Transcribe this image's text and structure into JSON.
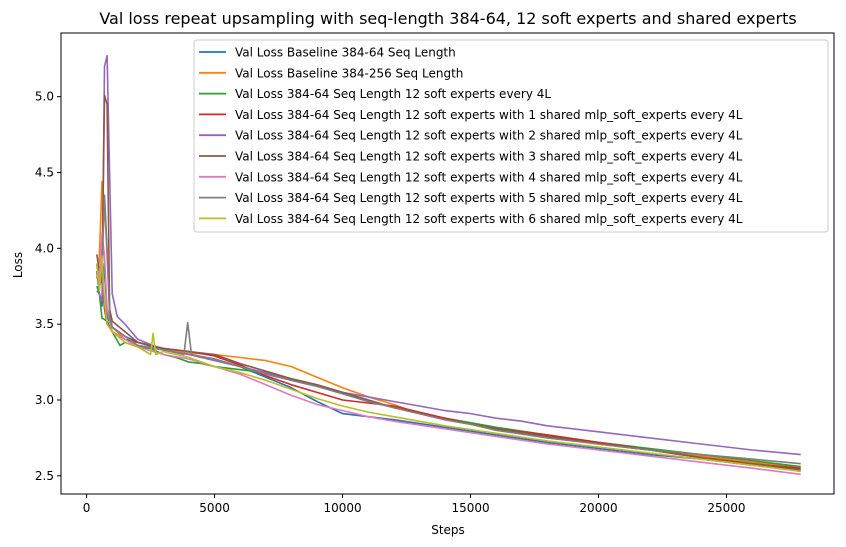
{
  "chart_data": {
    "type": "line",
    "title": "Val loss repeat upsampling with seq-length 384-64, 12 soft experts and shared experts",
    "xlabel": "Steps",
    "ylabel": "Loss",
    "xlim": [
      -1000,
      29200
    ],
    "ylim": [
      2.38,
      5.42
    ],
    "xticks": [
      0,
      5000,
      10000,
      15000,
      20000,
      25000
    ],
    "yticks": [
      2.5,
      3.0,
      3.5,
      4.0,
      4.5,
      5.0
    ],
    "xtick_labels": [
      "0",
      "5000",
      "10000",
      "15000",
      "20000",
      "25000"
    ],
    "ytick_labels": [
      "2.5",
      "3.0",
      "3.5",
      "4.0",
      "4.5",
      "5.0"
    ],
    "grid": false,
    "legend_position": "top-right",
    "series": [
      {
        "name": "Val Loss Baseline 384-64 Seq Length",
        "color": "#1f77b4",
        "points": [
          [
            400,
            3.85
          ],
          [
            500,
            3.7
          ],
          [
            600,
            3.62
          ],
          [
            700,
            3.9
          ],
          [
            800,
            3.55
          ],
          [
            1000,
            3.48
          ],
          [
            1500,
            3.42
          ],
          [
            2000,
            3.38
          ],
          [
            3000,
            3.33
          ],
          [
            4000,
            3.3
          ],
          [
            5000,
            3.27
          ],
          [
            6000,
            3.22
          ],
          [
            7000,
            3.15
          ],
          [
            8000,
            3.08
          ],
          [
            9000,
            2.99
          ],
          [
            10000,
            2.91
          ],
          [
            11000,
            2.89
          ],
          [
            12000,
            2.87
          ],
          [
            14000,
            2.82
          ],
          [
            16000,
            2.77
          ],
          [
            18000,
            2.72
          ],
          [
            20000,
            2.68
          ],
          [
            22000,
            2.64
          ],
          [
            24000,
            2.61
          ],
          [
            26000,
            2.57
          ],
          [
            27500,
            2.54
          ],
          [
            27900,
            2.53
          ]
        ]
      },
      {
        "name": "Val Loss Baseline 384-256 Seq Length",
        "color": "#ff7f0e",
        "points": [
          [
            400,
            3.8
          ],
          [
            500,
            3.95
          ],
          [
            600,
            4.44
          ],
          [
            700,
            4.3
          ],
          [
            800,
            3.95
          ],
          [
            900,
            3.6
          ],
          [
            1000,
            3.48
          ],
          [
            1500,
            3.4
          ],
          [
            2000,
            3.36
          ],
          [
            3000,
            3.33
          ],
          [
            4000,
            3.31
          ],
          [
            5000,
            3.3
          ],
          [
            6000,
            3.28
          ],
          [
            7000,
            3.26
          ],
          [
            8000,
            3.22
          ],
          [
            9000,
            3.15
          ],
          [
            10000,
            3.08
          ],
          [
            11000,
            3.02
          ],
          [
            12000,
            2.97
          ],
          [
            13000,
            2.91
          ],
          [
            14000,
            2.87
          ],
          [
            15000,
            2.84
          ],
          [
            16000,
            2.81
          ],
          [
            18000,
            2.76
          ],
          [
            20000,
            2.71
          ],
          [
            22000,
            2.67
          ],
          [
            24000,
            2.63
          ],
          [
            26000,
            2.59
          ],
          [
            27900,
            2.56
          ]
        ]
      },
      {
        "name": "Val Loss 384-64 Seq Length 12 soft experts every 4L",
        "color": "#2ca02c",
        "points": [
          [
            400,
            3.75
          ],
          [
            500,
            3.7
          ],
          [
            600,
            3.54
          ],
          [
            800,
            3.52
          ],
          [
            1000,
            3.45
          ],
          [
            1300,
            3.36
          ],
          [
            1500,
            3.38
          ],
          [
            2000,
            3.35
          ],
          [
            2500,
            3.34
          ],
          [
            3000,
            3.3
          ],
          [
            3500,
            3.28
          ],
          [
            4000,
            3.25
          ],
          [
            4500,
            3.24
          ],
          [
            5000,
            3.22
          ],
          [
            6000,
            3.2
          ],
          [
            7000,
            3.18
          ],
          [
            8000,
            3.14
          ],
          [
            9000,
            3.1
          ],
          [
            10000,
            3.05
          ],
          [
            11000,
            3.0
          ],
          [
            12000,
            2.95
          ],
          [
            13000,
            2.91
          ],
          [
            14000,
            2.88
          ],
          [
            15000,
            2.85
          ],
          [
            16000,
            2.82
          ],
          [
            18000,
            2.77
          ],
          [
            20000,
            2.72
          ],
          [
            22000,
            2.68
          ],
          [
            24000,
            2.64
          ],
          [
            26000,
            2.6
          ],
          [
            27900,
            2.56
          ]
        ]
      },
      {
        "name": "Val Loss 384-64 Seq Length 12 soft experts with 1 shared mlp_soft_experts every 4L",
        "color": "#d62728",
        "points": [
          [
            400,
            3.9
          ],
          [
            500,
            3.75
          ],
          [
            600,
            3.8
          ],
          [
            700,
            3.6
          ],
          [
            800,
            3.5
          ],
          [
            1000,
            3.45
          ],
          [
            1500,
            3.4
          ],
          [
            2000,
            3.38
          ],
          [
            3000,
            3.34
          ],
          [
            4000,
            3.32
          ],
          [
            5000,
            3.29
          ],
          [
            6000,
            3.23
          ],
          [
            7000,
            3.16
          ],
          [
            8000,
            3.1
          ],
          [
            9000,
            3.05
          ],
          [
            10000,
            3.0
          ],
          [
            11000,
            2.98
          ],
          [
            12000,
            2.96
          ],
          [
            13000,
            2.92
          ],
          [
            14000,
            2.88
          ],
          [
            15000,
            2.84
          ],
          [
            16000,
            2.81
          ],
          [
            18000,
            2.77
          ],
          [
            20000,
            2.72
          ],
          [
            22000,
            2.67
          ],
          [
            24000,
            2.62
          ],
          [
            26000,
            2.58
          ],
          [
            27900,
            2.55
          ]
        ]
      },
      {
        "name": "Val Loss 384-64 Seq Length 12 soft experts with 2 shared mlp_soft_experts every 4L",
        "color": "#9467bd",
        "points": [
          [
            400,
            3.72
          ],
          [
            500,
            3.7
          ],
          [
            600,
            3.65
          ],
          [
            700,
            5.2
          ],
          [
            800,
            5.27
          ],
          [
            900,
            4.5
          ],
          [
            1000,
            3.7
          ],
          [
            1200,
            3.55
          ],
          [
            1500,
            3.5
          ],
          [
            2000,
            3.4
          ],
          [
            3000,
            3.33
          ],
          [
            4000,
            3.3
          ],
          [
            5000,
            3.26
          ],
          [
            6000,
            3.22
          ],
          [
            7000,
            3.18
          ],
          [
            8000,
            3.13
          ],
          [
            9000,
            3.09
          ],
          [
            10000,
            3.05
          ],
          [
            11000,
            3.02
          ],
          [
            12000,
            2.99
          ],
          [
            13000,
            2.96
          ],
          [
            14000,
            2.93
          ],
          [
            15000,
            2.91
          ],
          [
            16000,
            2.88
          ],
          [
            17000,
            2.86
          ],
          [
            18000,
            2.83
          ],
          [
            20000,
            2.79
          ],
          [
            22000,
            2.75
          ],
          [
            24000,
            2.71
          ],
          [
            26000,
            2.67
          ],
          [
            27900,
            2.64
          ]
        ]
      },
      {
        "name": "Val Loss 384-64 Seq Length 12 soft experts with 3 shared mlp_soft_experts every 4L",
        "color": "#8c564b",
        "points": [
          [
            400,
            3.96
          ],
          [
            500,
            3.85
          ],
          [
            600,
            3.8
          ],
          [
            700,
            5.01
          ],
          [
            800,
            4.95
          ],
          [
            900,
            3.6
          ],
          [
            1000,
            3.52
          ],
          [
            1500,
            3.45
          ],
          [
            2000,
            3.38
          ],
          [
            3000,
            3.34
          ],
          [
            4000,
            3.32
          ],
          [
            5000,
            3.3
          ],
          [
            6000,
            3.24
          ],
          [
            7000,
            3.19
          ],
          [
            8000,
            3.14
          ],
          [
            9000,
            3.1
          ],
          [
            10000,
            3.05
          ],
          [
            11000,
            3.0
          ],
          [
            12000,
            2.95
          ],
          [
            13000,
            2.91
          ],
          [
            14000,
            2.87
          ],
          [
            15000,
            2.84
          ],
          [
            16000,
            2.81
          ],
          [
            18000,
            2.76
          ],
          [
            20000,
            2.71
          ],
          [
            22000,
            2.67
          ],
          [
            24000,
            2.62
          ],
          [
            26000,
            2.58
          ],
          [
            27900,
            2.54
          ]
        ]
      },
      {
        "name": "Val Loss 384-64 Seq Length 12 soft experts with 4 shared mlp_soft_experts every 4L",
        "color": "#e377c2",
        "points": [
          [
            400,
            3.88
          ],
          [
            500,
            3.8
          ],
          [
            600,
            4.1
          ],
          [
            700,
            3.95
          ],
          [
            800,
            3.6
          ],
          [
            1000,
            3.45
          ],
          [
            1500,
            3.4
          ],
          [
            2000,
            3.35
          ],
          [
            3000,
            3.3
          ],
          [
            4000,
            3.27
          ],
          [
            5000,
            3.22
          ],
          [
            6000,
            3.17
          ],
          [
            7000,
            3.1
          ],
          [
            8000,
            3.03
          ],
          [
            9000,
            2.97
          ],
          [
            10000,
            2.93
          ],
          [
            11000,
            2.89
          ],
          [
            12000,
            2.86
          ],
          [
            14000,
            2.81
          ],
          [
            16000,
            2.76
          ],
          [
            18000,
            2.71
          ],
          [
            20000,
            2.67
          ],
          [
            22000,
            2.63
          ],
          [
            24000,
            2.59
          ],
          [
            26000,
            2.55
          ],
          [
            27900,
            2.51
          ]
        ]
      },
      {
        "name": "Val Loss 384-64 Seq Length 12 soft experts with 5 shared mlp_soft_experts every 4L",
        "color": "#7f7f7f",
        "points": [
          [
            400,
            3.85
          ],
          [
            500,
            3.75
          ],
          [
            600,
            3.85
          ],
          [
            700,
            4.35
          ],
          [
            800,
            4.0
          ],
          [
            900,
            3.55
          ],
          [
            1000,
            3.48
          ],
          [
            1500,
            3.42
          ],
          [
            2000,
            3.36
          ],
          [
            3000,
            3.33
          ],
          [
            3800,
            3.3
          ],
          [
            3950,
            3.51
          ],
          [
            4100,
            3.3
          ],
          [
            5000,
            3.27
          ],
          [
            6000,
            3.22
          ],
          [
            7000,
            3.17
          ],
          [
            8000,
            3.13
          ],
          [
            9000,
            3.09
          ],
          [
            10000,
            3.04
          ],
          [
            11000,
            2.99
          ],
          [
            12000,
            2.95
          ],
          [
            13000,
            2.91
          ],
          [
            14000,
            2.87
          ],
          [
            15000,
            2.84
          ],
          [
            16000,
            2.8
          ],
          [
            18000,
            2.75
          ],
          [
            20000,
            2.71
          ],
          [
            22000,
            2.67
          ],
          [
            24000,
            2.64
          ],
          [
            26000,
            2.61
          ],
          [
            27900,
            2.58
          ]
        ]
      },
      {
        "name": "Val Loss 384-64 Seq Length 12 soft experts with 6 shared mlp_soft_experts every 4L",
        "color": "#bcbd22",
        "points": [
          [
            400,
            3.9
          ],
          [
            500,
            3.72
          ],
          [
            600,
            3.95
          ],
          [
            700,
            3.65
          ],
          [
            800,
            3.5
          ],
          [
            1000,
            3.45
          ],
          [
            1500,
            3.38
          ],
          [
            2000,
            3.35
          ],
          [
            2500,
            3.3
          ],
          [
            2600,
            3.44
          ],
          [
            2700,
            3.3
          ],
          [
            3000,
            3.32
          ],
          [
            4000,
            3.28
          ],
          [
            5000,
            3.22
          ],
          [
            6000,
            3.18
          ],
          [
            7000,
            3.13
          ],
          [
            8000,
            3.07
          ],
          [
            9000,
            3.01
          ],
          [
            10000,
            2.96
          ],
          [
            11000,
            2.92
          ],
          [
            12000,
            2.89
          ],
          [
            14000,
            2.83
          ],
          [
            16000,
            2.78
          ],
          [
            18000,
            2.73
          ],
          [
            20000,
            2.69
          ],
          [
            22000,
            2.65
          ],
          [
            24000,
            2.61
          ],
          [
            26000,
            2.57
          ],
          [
            27900,
            2.53
          ]
        ]
      }
    ]
  }
}
